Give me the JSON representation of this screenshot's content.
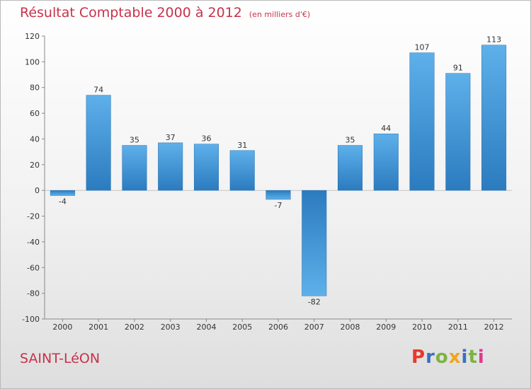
{
  "header": {
    "title": "Résultat Comptable 2000 à 2012",
    "subtitle": "(en milliers d'€)"
  },
  "footer": {
    "commune": "SAINT-LéON",
    "logo_letters": [
      "P",
      "r",
      "o",
      "x",
      "i",
      "t",
      "i"
    ],
    "logo_colors": [
      "#e63a2d",
      "#3a6fc1",
      "#7cb341",
      "#f2a51b",
      "#3a6fc1",
      "#7cb341",
      "#e0378a"
    ]
  },
  "chart_data": {
    "type": "bar",
    "title": "Résultat Comptable 2000 à 2012",
    "subtitle": "(en milliers d'€)",
    "categories": [
      "2000",
      "2001",
      "2002",
      "2003",
      "2004",
      "2005",
      "2006",
      "2007",
      "2008",
      "2009",
      "2010",
      "2011",
      "2012"
    ],
    "values": [
      -4,
      74,
      35,
      37,
      36,
      31,
      -7,
      -82,
      35,
      44,
      107,
      91,
      113
    ],
    "yticks": [
      120,
      100,
      80,
      60,
      40,
      20,
      0,
      -20,
      -40,
      -60,
      -80,
      -100
    ],
    "ylim": [
      -100,
      120
    ],
    "xlabel": "",
    "ylabel": "",
    "grid": false,
    "bar_color_dark": "#2b7bbf",
    "bar_color_light": "#5eb0ea"
  }
}
